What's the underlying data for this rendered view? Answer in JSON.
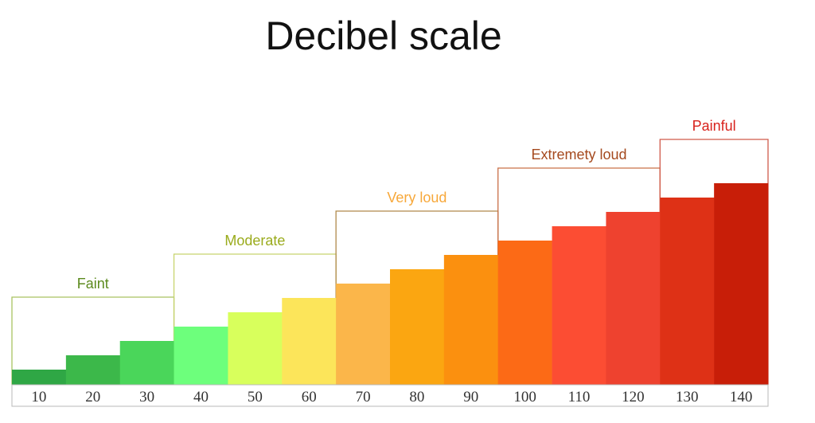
{
  "chart_data": {
    "type": "bar",
    "title": "Decibel scale",
    "categories": [
      "10",
      "20",
      "30",
      "40",
      "50",
      "60",
      "70",
      "80",
      "90",
      "100",
      "110",
      "120",
      "130",
      "140"
    ],
    "values": [
      10,
      20,
      30,
      40,
      50,
      60,
      70,
      80,
      90,
      100,
      110,
      120,
      130,
      140
    ],
    "bar_colors": [
      "#2fa745",
      "#3cb84a",
      "#4ad65a",
      "#6dff7c",
      "#d8ff5c",
      "#fce55a",
      "#fbb64a",
      "#fba611",
      "#fb900f",
      "#fc6a16",
      "#fc4d33",
      "#ee422f",
      "#de3116",
      "#c81e08"
    ],
    "zones": [
      {
        "label": "Faint",
        "from": 0,
        "to": 2,
        "color": "#5c8a1e",
        "border": "#a9c261"
      },
      {
        "label": "Moderate",
        "from": 3,
        "to": 5,
        "color": "#9aab1c",
        "border": "#c8d46e"
      },
      {
        "label": "Very loud",
        "from": 6,
        "to": 8,
        "color": "#f7a83a",
        "border": "#b0894a"
      },
      {
        "label": "Extremety loud",
        "from": 9,
        "to": 11,
        "color": "#a54a1f",
        "border": "#c97048"
      },
      {
        "label": "Painful",
        "from": 12,
        "to": 13,
        "color": "#d8221c",
        "border": "#d05a4a"
      }
    ],
    "xlabel": "",
    "ylabel": "",
    "grid": false
  }
}
